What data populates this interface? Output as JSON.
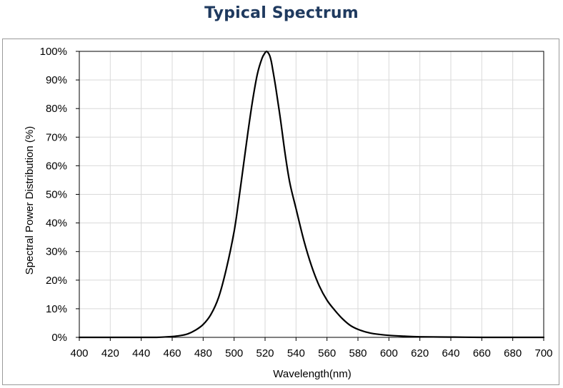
{
  "chart_data": {
    "type": "line",
    "title": "Typical Spectrum",
    "xlabel": "Wavelength(nm)",
    "ylabel": "Spectral Power Distribution (%)",
    "xlim": [
      400,
      700
    ],
    "ylim": [
      0,
      100
    ],
    "x_ticks": [
      400,
      420,
      440,
      460,
      480,
      500,
      520,
      540,
      560,
      580,
      600,
      620,
      640,
      660,
      680,
      700
    ],
    "y_ticks": [
      0,
      10,
      20,
      30,
      40,
      50,
      60,
      70,
      80,
      90,
      100
    ],
    "y_tick_labels": [
      "0%",
      "10%",
      "20%",
      "30%",
      "40%",
      "50%",
      "60%",
      "70%",
      "80%",
      "90%",
      "100%"
    ],
    "grid": true,
    "line_color": "#000000",
    "grid_color": "#d9d9d9",
    "title_color": "#1f3a5f",
    "series": [
      {
        "x": [
          400,
          420,
          440,
          450,
          460,
          465,
          470,
          475,
          480,
          485,
          490,
          495,
          500,
          503,
          506,
          509,
          512,
          515,
          518,
          520,
          521,
          522,
          523,
          524,
          525,
          527,
          530,
          533,
          536,
          540,
          545,
          550,
          555,
          560,
          565,
          570,
          575,
          580,
          585,
          590,
          600,
          610,
          620,
          640,
          660,
          680,
          700
        ],
        "y": [
          0,
          0,
          0,
          0,
          0.3,
          0.6,
          1.2,
          2.5,
          4.5,
          8,
          14,
          24,
          37,
          48,
          60,
          72,
          83,
          92,
          97.5,
          99.5,
          100,
          99.5,
          98.5,
          96.5,
          93.5,
          87,
          76,
          64,
          54,
          45,
          34,
          25,
          18,
          13,
          9.5,
          6.5,
          4.2,
          2.8,
          1.9,
          1.3,
          0.7,
          0.4,
          0.2,
          0.1,
          0,
          0,
          0
        ]
      }
    ]
  }
}
